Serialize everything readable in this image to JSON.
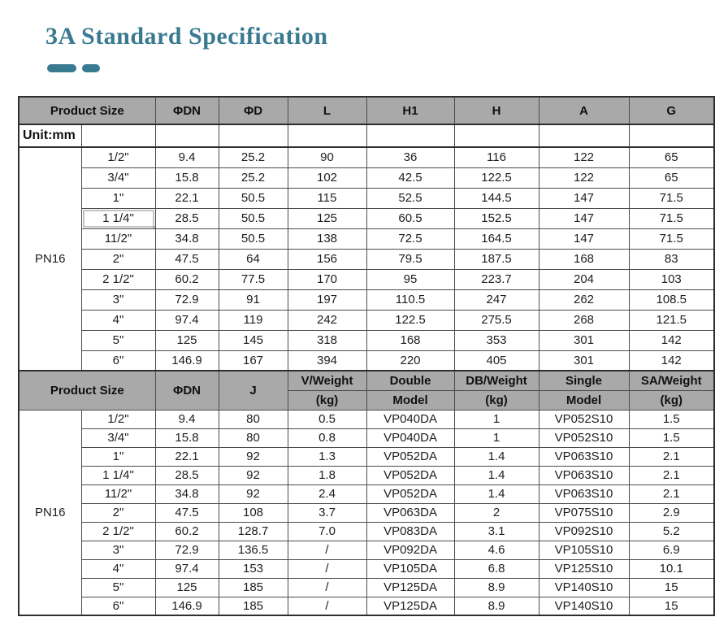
{
  "title": "3A Standard Specification",
  "unit_label": "Unit:mm",
  "accent_color": "#3a7a91",
  "header_bg_color": "#a9a9a9",
  "dimension_table": {
    "group_label": "PN16",
    "headers": [
      "Product Size",
      "ΦDN",
      "ΦD",
      "L",
      "H1",
      "H",
      "A",
      "G"
    ],
    "selected_row": 3,
    "rows": [
      [
        "1/2\"",
        "9.4",
        "25.2",
        "90",
        "36",
        "116",
        "122",
        "65"
      ],
      [
        "3/4\"",
        "15.8",
        "25.2",
        "102",
        "42.5",
        "122.5",
        "122",
        "65"
      ],
      [
        "1\"",
        "22.1",
        "50.5",
        "115",
        "52.5",
        "144.5",
        "147",
        "71.5"
      ],
      [
        "1 1/4\"",
        "28.5",
        "50.5",
        "125",
        "60.5",
        "152.5",
        "147",
        "71.5"
      ],
      [
        "11/2\"",
        "34.8",
        "50.5",
        "138",
        "72.5",
        "164.5",
        "147",
        "71.5"
      ],
      [
        "2\"",
        "47.5",
        "64",
        "156",
        "79.5",
        "187.5",
        "168",
        "83"
      ],
      [
        "2 1/2\"",
        "60.2",
        "77.5",
        "170",
        "95",
        "223.7",
        "204",
        "103"
      ],
      [
        "3\"",
        "72.9",
        "91",
        "197",
        "110.5",
        "247",
        "262",
        "108.5"
      ],
      [
        "4\"",
        "97.4",
        "119",
        "242",
        "122.5",
        "275.5",
        "268",
        "121.5"
      ],
      [
        "5\"",
        "125",
        "145",
        "318",
        "168",
        "353",
        "301",
        "142"
      ],
      [
        "6\"",
        "146.9",
        "167",
        "394",
        "220",
        "405",
        "301",
        "142"
      ]
    ]
  },
  "weight_table": {
    "group_label": "PN16",
    "headers_top": [
      "Product Size",
      "ΦDN",
      "J",
      "V/Weight",
      "Double",
      "DB/Weight",
      "Single",
      "SA/Weight"
    ],
    "headers_bottom": [
      "(kg)",
      "Model",
      "(kg)",
      "Model",
      "(kg)"
    ],
    "rows": [
      [
        "1/2\"",
        "9.4",
        "80",
        "0.5",
        "VP040DA",
        "1",
        "VP052S10",
        "1.5"
      ],
      [
        "3/4\"",
        "15.8",
        "80",
        "0.8",
        "VP040DA",
        "1",
        "VP052S10",
        "1.5"
      ],
      [
        "1\"",
        "22.1",
        "92",
        "1.3",
        "VP052DA",
        "1.4",
        "VP063S10",
        "2.1"
      ],
      [
        "1 1/4\"",
        "28.5",
        "92",
        "1.8",
        "VP052DA",
        "1.4",
        "VP063S10",
        "2.1"
      ],
      [
        "11/2\"",
        "34.8",
        "92",
        "2.4",
        "VP052DA",
        "1.4",
        "VP063S10",
        "2.1"
      ],
      [
        "2\"",
        "47.5",
        "108",
        "3.7",
        "VP063DA",
        "2",
        "VP075S10",
        "2.9"
      ],
      [
        "2 1/2\"",
        "60.2",
        "128.7",
        "7.0",
        "VP083DA",
        "3.1",
        "VP092S10",
        "5.2"
      ],
      [
        "3\"",
        "72.9",
        "136.5",
        "/",
        "VP092DA",
        "4.6",
        "VP105S10",
        "6.9"
      ],
      [
        "4\"",
        "97.4",
        "153",
        "/",
        "VP105DA",
        "6.8",
        "VP125S10",
        "10.1"
      ],
      [
        "5\"",
        "125",
        "185",
        "/",
        "VP125DA",
        "8.9",
        "VP140S10",
        "15"
      ],
      [
        "6\"",
        "146.9",
        "185",
        "/",
        "VP125DA",
        "8.9",
        "VP140S10",
        "15"
      ]
    ]
  }
}
